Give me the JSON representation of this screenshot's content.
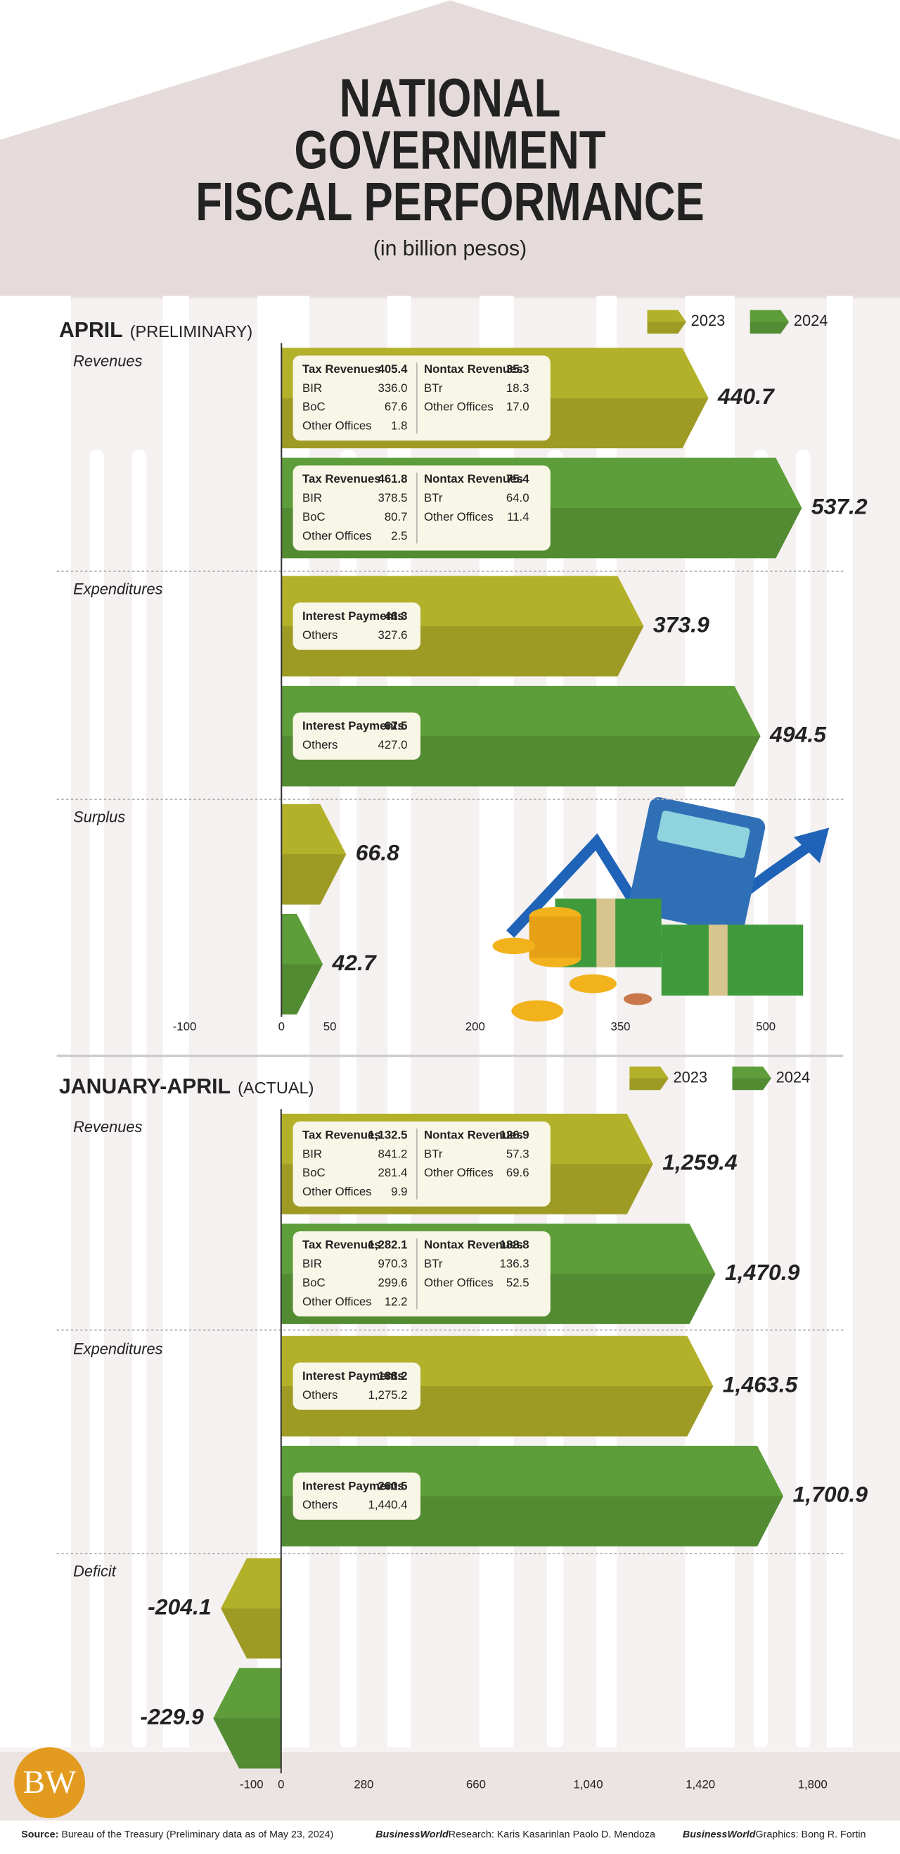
{
  "header": {
    "title_lines": [
      "NATIONAL",
      "GOVERNMENT",
      "FISCAL PERFORMANCE"
    ],
    "subtitle": "(in billion pesos)"
  },
  "chart_data": [
    {
      "type": "bar",
      "orientation": "horizontal",
      "title": "APRIL",
      "subtitle": "(PRELIMINARY)",
      "categories": [
        "Revenues",
        "Expenditures",
        "Surplus"
      ],
      "series": [
        {
          "name": "2023",
          "color": "#b3b02a",
          "values": [
            440.7,
            373.9,
            66.8
          ],
          "breakdowns": [
            [
              [
                [
                  "Tax Revenues",
                  "405.4"
                ],
                [
                  "BIR",
                  "336.0"
                ],
                [
                  "BoC",
                  "67.6"
                ],
                [
                  "Other Offices",
                  "1.8"
                ]
              ],
              [
                [
                  "Nontax Revenues",
                  "35.3"
                ],
                [
                  "BTr",
                  "18.3"
                ],
                [
                  "Other Offices",
                  "17.0"
                ]
              ]
            ],
            [
              [
                [
                  "Interest Payments",
                  "46.3"
                ],
                [
                  "Others",
                  "327.6"
                ]
              ]
            ],
            null
          ]
        },
        {
          "name": "2024",
          "color": "#5e9e3a",
          "values": [
            537.2,
            494.5,
            42.7
          ],
          "breakdowns": [
            [
              [
                [
                  "Tax Revenues",
                  "461.8"
                ],
                [
                  "BIR",
                  "378.5"
                ],
                [
                  "BoC",
                  "80.7"
                ],
                [
                  "Other Offices",
                  "2.5"
                ]
              ],
              [
                [
                  "Nontax Revenues",
                  "75.4"
                ],
                [
                  "BTr",
                  "64.0"
                ],
                [
                  "Other Offices",
                  "11.4"
                ]
              ]
            ],
            [
              [
                [
                  "Interest Payments",
                  "67.5"
                ],
                [
                  "Others",
                  "427.0"
                ]
              ]
            ],
            null
          ]
        }
      ],
      "xlim": [
        -232,
        580
      ],
      "xticks": [
        -100,
        0,
        50,
        200,
        350,
        500
      ],
      "legend": "top-right"
    },
    {
      "type": "bar",
      "orientation": "horizontal",
      "title": "JANUARY-APRIL",
      "subtitle": "(ACTUAL)",
      "categories": [
        "Revenues",
        "Expenditures",
        "Deficit"
      ],
      "series": [
        {
          "name": "2023",
          "color": "#b3b02a",
          "values": [
            1259.4,
            1463.5,
            -204.1
          ],
          "value_labels": [
            "1,259.4",
            "1,463.5",
            "-204.1"
          ],
          "breakdowns": [
            [
              [
                [
                  "Tax Revenues",
                  "1,132.5"
                ],
                [
                  "BIR",
                  "841.2"
                ],
                [
                  "BoC",
                  "281.4"
                ],
                [
                  "Other Offices",
                  "9.9"
                ]
              ],
              [
                [
                  "Nontax Revenues",
                  "126.9"
                ],
                [
                  "BTr",
                  "57.3"
                ],
                [
                  "Other Offices",
                  "69.6"
                ]
              ]
            ],
            [
              [
                [
                  "Interest Payments",
                  "188.2"
                ],
                [
                  "Others",
                  "1,275.2"
                ]
              ]
            ],
            null
          ]
        },
        {
          "name": "2024",
          "color": "#5e9e3a",
          "values": [
            1470.9,
            1700.9,
            -229.9
          ],
          "value_labels": [
            "1,470.9",
            "1,700.9",
            "-229.9"
          ],
          "breakdowns": [
            [
              [
                [
                  "Tax Revenues",
                  "1,282.1"
                ],
                [
                  "BIR",
                  "970.3"
                ],
                [
                  "BoC",
                  "299.6"
                ],
                [
                  "Other Offices",
                  "12.2"
                ]
              ],
              [
                [
                  "Nontax Revenues",
                  "188.8"
                ],
                [
                  "BTr",
                  "136.3"
                ],
                [
                  "Other Offices",
                  "52.5"
                ]
              ]
            ],
            [
              [
                [
                  "Interest Payments",
                  "260.5"
                ],
                [
                  "Others",
                  "1,440.4"
                ]
              ]
            ],
            null
          ]
        }
      ],
      "xlim": [
        -760,
        1904
      ],
      "xticks": [
        -100,
        0,
        280,
        660,
        {
          "value": 1040,
          "label": "1,040"
        },
        {
          "value": 1420,
          "label": "1,420"
        },
        {
          "value": 1800,
          "label": "1,800"
        }
      ],
      "legend": "top-right"
    }
  ],
  "footer": {
    "logo": "BW",
    "source_label": "Source:",
    "source": "Bureau of the Treasury (Preliminary data as of May 23, 2024)",
    "research_label": "BusinessWorld",
    "research": "Research: Karis Kasarinlan Paolo D. Mendoza",
    "graphics_label": "BusinessWorld",
    "graphics": "Graphics: Bong R. Fortin"
  }
}
